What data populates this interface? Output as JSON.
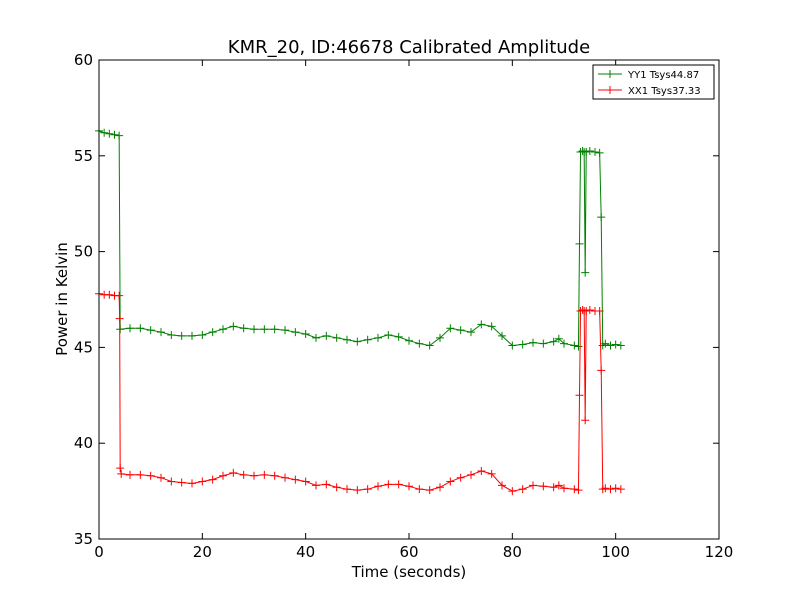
{
  "chart_data": {
    "type": "line",
    "title": "KMR_20, ID:46678 Calibrated Amplitude",
    "xlabel": "Time (seconds)",
    "ylabel": "Power in Kelvin",
    "xlim": [
      0,
      120
    ],
    "ylim": [
      35,
      60
    ],
    "xticks": [
      "0",
      "20",
      "40",
      "60",
      "80",
      "100",
      "120"
    ],
    "yticks": [
      "35",
      "40",
      "45",
      "50",
      "55",
      "60"
    ],
    "grid": false,
    "legend_position": "top-right",
    "series": [
      {
        "name": "YY1 Tsys44.87",
        "color": "#008000",
        "marker": "+",
        "points": [
          [
            0,
            56.3
          ],
          [
            1,
            56.2
          ],
          [
            2,
            56.15
          ],
          [
            3,
            56.1
          ],
          [
            3.9,
            56.05
          ],
          [
            4.1,
            45.95
          ],
          [
            6,
            46.0
          ],
          [
            8,
            46.0
          ],
          [
            10,
            45.9
          ],
          [
            12,
            45.8
          ],
          [
            14,
            45.65
          ],
          [
            16,
            45.6
          ],
          [
            18,
            45.6
          ],
          [
            20,
            45.65
          ],
          [
            22,
            45.8
          ],
          [
            24,
            45.95
          ],
          [
            26,
            46.1
          ],
          [
            28,
            46.0
          ],
          [
            30,
            45.95
          ],
          [
            32,
            45.95
          ],
          [
            34,
            45.95
          ],
          [
            36,
            45.9
          ],
          [
            38,
            45.8
          ],
          [
            40,
            45.7
          ],
          [
            42,
            45.5
          ],
          [
            44,
            45.6
          ],
          [
            46,
            45.5
          ],
          [
            48,
            45.4
          ],
          [
            50,
            45.3
          ],
          [
            52,
            45.4
          ],
          [
            54,
            45.5
          ],
          [
            56,
            45.65
          ],
          [
            58,
            45.55
          ],
          [
            60,
            45.35
          ],
          [
            62,
            45.2
          ],
          [
            64,
            45.1
          ],
          [
            66,
            45.5
          ],
          [
            68,
            46.0
          ],
          [
            70,
            45.9
          ],
          [
            72,
            45.8
          ],
          [
            74,
            46.2
          ],
          [
            76,
            46.1
          ],
          [
            78,
            45.6
          ],
          [
            80,
            45.1
          ],
          [
            82,
            45.15
          ],
          [
            84,
            45.25
          ],
          [
            86,
            45.2
          ],
          [
            88,
            45.3
          ],
          [
            89,
            45.45
          ],
          [
            90,
            45.2
          ],
          [
            92,
            45.1
          ],
          [
            92.8,
            45.05
          ],
          [
            93.0,
            50.4
          ],
          [
            93.2,
            55.2
          ],
          [
            93.6,
            55.25
          ],
          [
            93.9,
            55.2
          ],
          [
            94.1,
            48.9
          ],
          [
            94.3,
            55.2
          ],
          [
            95,
            55.25
          ],
          [
            96,
            55.2
          ],
          [
            96.9,
            55.15
          ],
          [
            97.2,
            51.8
          ],
          [
            97.5,
            45.1
          ],
          [
            98,
            45.2
          ],
          [
            99,
            45.1
          ],
          [
            100,
            45.15
          ],
          [
            101,
            45.1
          ]
        ]
      },
      {
        "name": "XX1 Tsys37.33",
        "color": "#ff0000",
        "marker": "+",
        "points": [
          [
            0,
            47.8
          ],
          [
            1,
            47.75
          ],
          [
            2,
            47.75
          ],
          [
            3,
            47.7
          ],
          [
            3.9,
            47.7
          ],
          [
            4.0,
            46.5
          ],
          [
            4.1,
            38.7
          ],
          [
            4.3,
            38.4
          ],
          [
            6,
            38.35
          ],
          [
            8,
            38.35
          ],
          [
            10,
            38.3
          ],
          [
            12,
            38.2
          ],
          [
            14,
            38.0
          ],
          [
            16,
            37.95
          ],
          [
            18,
            37.9
          ],
          [
            20,
            38.0
          ],
          [
            22,
            38.1
          ],
          [
            24,
            38.3
          ],
          [
            26,
            38.45
          ],
          [
            28,
            38.35
          ],
          [
            30,
            38.3
          ],
          [
            32,
            38.35
          ],
          [
            34,
            38.3
          ],
          [
            36,
            38.2
          ],
          [
            38,
            38.1
          ],
          [
            40,
            38.0
          ],
          [
            42,
            37.8
          ],
          [
            44,
            37.85
          ],
          [
            46,
            37.7
          ],
          [
            48,
            37.6
          ],
          [
            50,
            37.55
          ],
          [
            52,
            37.6
          ],
          [
            54,
            37.75
          ],
          [
            56,
            37.85
          ],
          [
            58,
            37.85
          ],
          [
            60,
            37.75
          ],
          [
            62,
            37.6
          ],
          [
            64,
            37.55
          ],
          [
            66,
            37.7
          ],
          [
            68,
            38.0
          ],
          [
            70,
            38.2
          ],
          [
            72,
            38.35
          ],
          [
            74,
            38.55
          ],
          [
            76,
            38.4
          ],
          [
            78,
            37.8
          ],
          [
            80,
            37.5
          ],
          [
            82,
            37.6
          ],
          [
            84,
            37.8
          ],
          [
            86,
            37.75
          ],
          [
            88,
            37.7
          ],
          [
            89,
            37.8
          ],
          [
            90,
            37.65
          ],
          [
            92,
            37.6
          ],
          [
            92.8,
            37.55
          ],
          [
            93.0,
            42.5
          ],
          [
            93.2,
            46.9
          ],
          [
            93.6,
            46.95
          ],
          [
            93.9,
            46.9
          ],
          [
            94.1,
            41.2
          ],
          [
            94.3,
            46.9
          ],
          [
            95,
            46.95
          ],
          [
            96,
            46.9
          ],
          [
            96.9,
            46.9
          ],
          [
            97.2,
            43.8
          ],
          [
            97.5,
            37.6
          ],
          [
            98,
            37.65
          ],
          [
            99,
            37.6
          ],
          [
            100,
            37.65
          ],
          [
            101,
            37.6
          ]
        ]
      }
    ]
  }
}
